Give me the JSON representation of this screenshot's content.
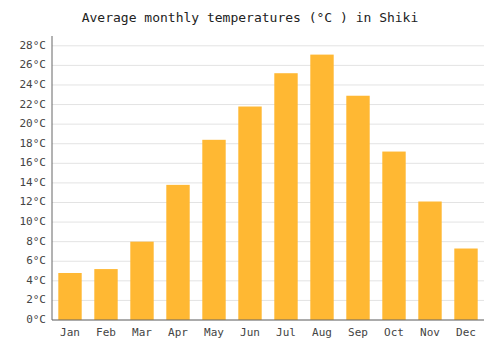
{
  "chart_data": {
    "type": "bar",
    "title": "Average monthly temperatures (°C ) in Shiki",
    "categories": [
      "Jan",
      "Feb",
      "Mar",
      "Apr",
      "May",
      "Jun",
      "Jul",
      "Aug",
      "Sep",
      "Oct",
      "Nov",
      "Dec"
    ],
    "values": [
      4.8,
      5.2,
      8.0,
      13.8,
      18.4,
      21.8,
      25.2,
      27.1,
      22.9,
      17.2,
      12.1,
      7.3
    ],
    "color": "#FFB833",
    "ylim": [
      0,
      29
    ],
    "yticks": [
      {
        "value": 0,
        "label": "0°C"
      },
      {
        "value": 2,
        "label": "2°C"
      },
      {
        "value": 4,
        "label": "4°C"
      },
      {
        "value": 6,
        "label": "6°C"
      },
      {
        "value": 8,
        "label": "8°C"
      },
      {
        "value": 10,
        "label": "10°C"
      },
      {
        "value": 12,
        "label": "12°C"
      },
      {
        "value": 14,
        "label": "14°C"
      },
      {
        "value": 16,
        "label": "16°C"
      },
      {
        "value": 18,
        "label": "18°C"
      },
      {
        "value": 20,
        "label": "20°C"
      },
      {
        "value": 22,
        "label": "22°C"
      },
      {
        "value": 24,
        "label": "24°C"
      },
      {
        "value": 26,
        "label": "26°C"
      },
      {
        "value": 28,
        "label": "28°C"
      }
    ],
    "grid": true
  }
}
